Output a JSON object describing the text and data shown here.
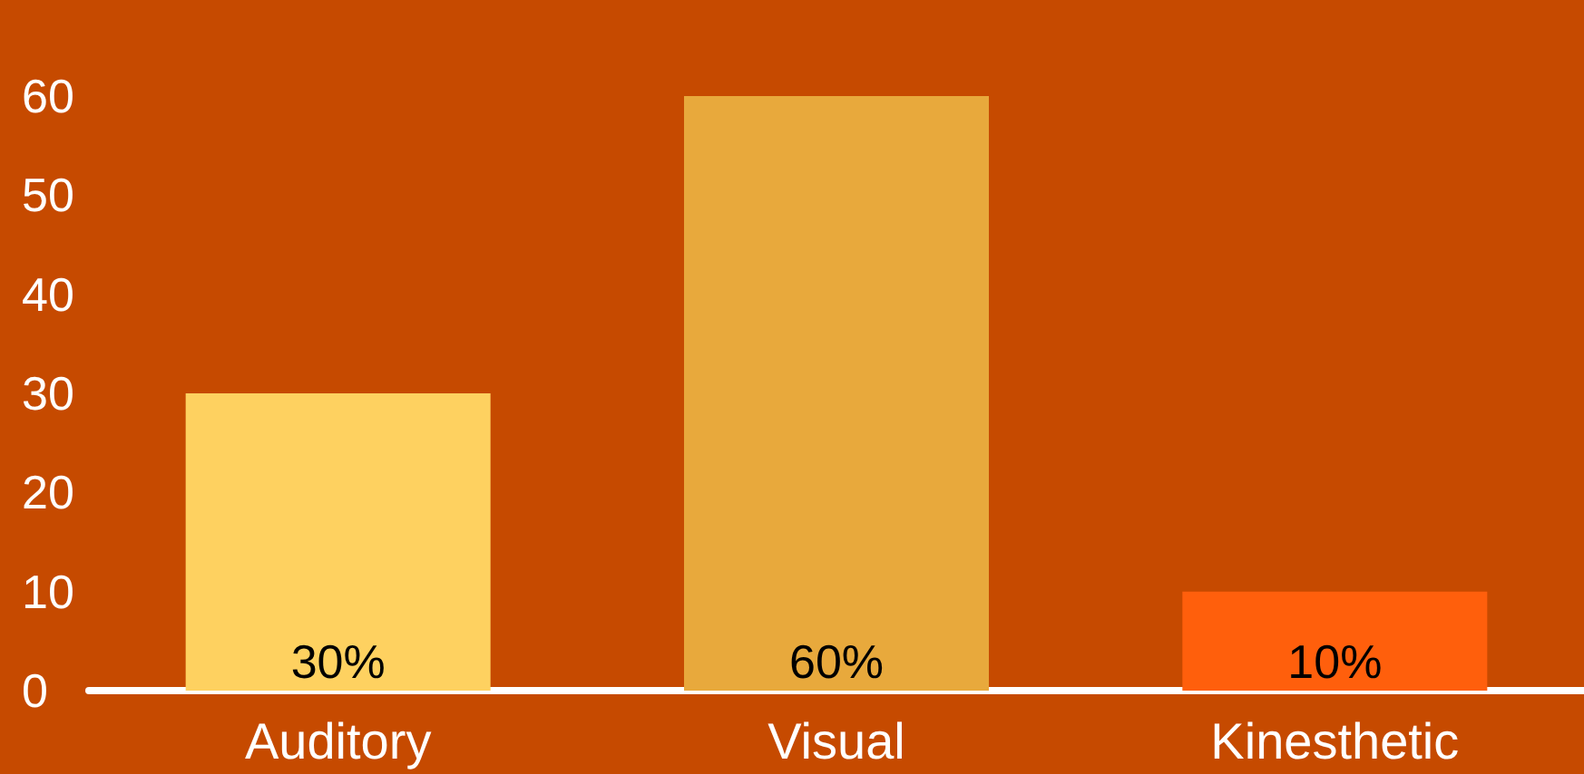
{
  "chart_data": {
    "type": "bar",
    "categories": [
      "Auditory",
      "Visual",
      "Kinesthetic"
    ],
    "values": [
      30,
      60,
      10
    ],
    "colors": [
      "#fed160",
      "#e8a93c",
      "#ff5f0c"
    ],
    "value_labels": [
      "30%",
      "60%",
      "10%"
    ],
    "ylim": [
      0,
      60
    ],
    "yticks": [
      0,
      10,
      20,
      30,
      40,
      50,
      60
    ],
    "grid": false
  }
}
